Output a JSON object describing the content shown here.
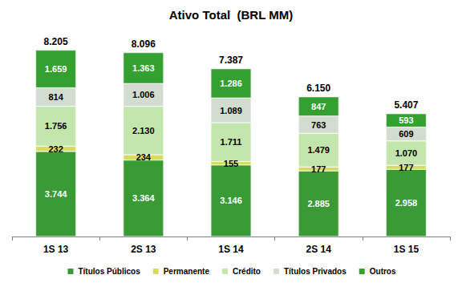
{
  "chart_data": {
    "type": "bar",
    "title": "Ativo Total  (BRL MM)",
    "categories": [
      "1S 13",
      "2S 13",
      "1S 14",
      "2S 14",
      "1S 15"
    ],
    "stacked": true,
    "data_labels": true,
    "grid": false,
    "legend": "bottom",
    "tick_labels": "x",
    "ylim": [
      0,
      9000
    ],
    "yticks": [
      0,
      9000
    ],
    "series": [
      {
        "name": "Títulos Públicos",
        "color": "#3a9a35",
        "values": [
          3744,
          3364,
          3146,
          2885,
          2958
        ],
        "value_labels": [
          "3.744",
          "3.364",
          "3.146",
          "2.885",
          "2.958"
        ]
      },
      {
        "name": "Permanente",
        "color": "#d6dc5e",
        "values": [
          232,
          234,
          155,
          177,
          177
        ],
        "value_labels": [
          "232",
          "234",
          "155",
          "177",
          "177"
        ]
      },
      {
        "name": "Crédito",
        "color": "#c3e6ad",
        "values": [
          1756,
          2130,
          1711,
          1479,
          1070
        ],
        "value_labels": [
          "1.756",
          "2.130",
          "1.711",
          "1.479",
          "1.070"
        ]
      },
      {
        "name": "Títulos Privados",
        "color": "#d2ddd0",
        "values": [
          814,
          1006,
          1089,
          763,
          609
        ],
        "value_labels": [
          "814",
          "1.006",
          "1.089",
          "763",
          "609"
        ]
      },
      {
        "name": "Outros",
        "color": "#33a02f",
        "values": [
          1659,
          1363,
          1286,
          847,
          593
        ],
        "value_labels": [
          "1.659",
          "1.363",
          "1.286",
          "847",
          "593"
        ]
      }
    ],
    "totals": [
      8205,
      8096,
      7387,
      6150,
      5407
    ],
    "total_labels": [
      "8.205",
      "8.096",
      "7.387",
      "6.150",
      "5.407"
    ]
  }
}
